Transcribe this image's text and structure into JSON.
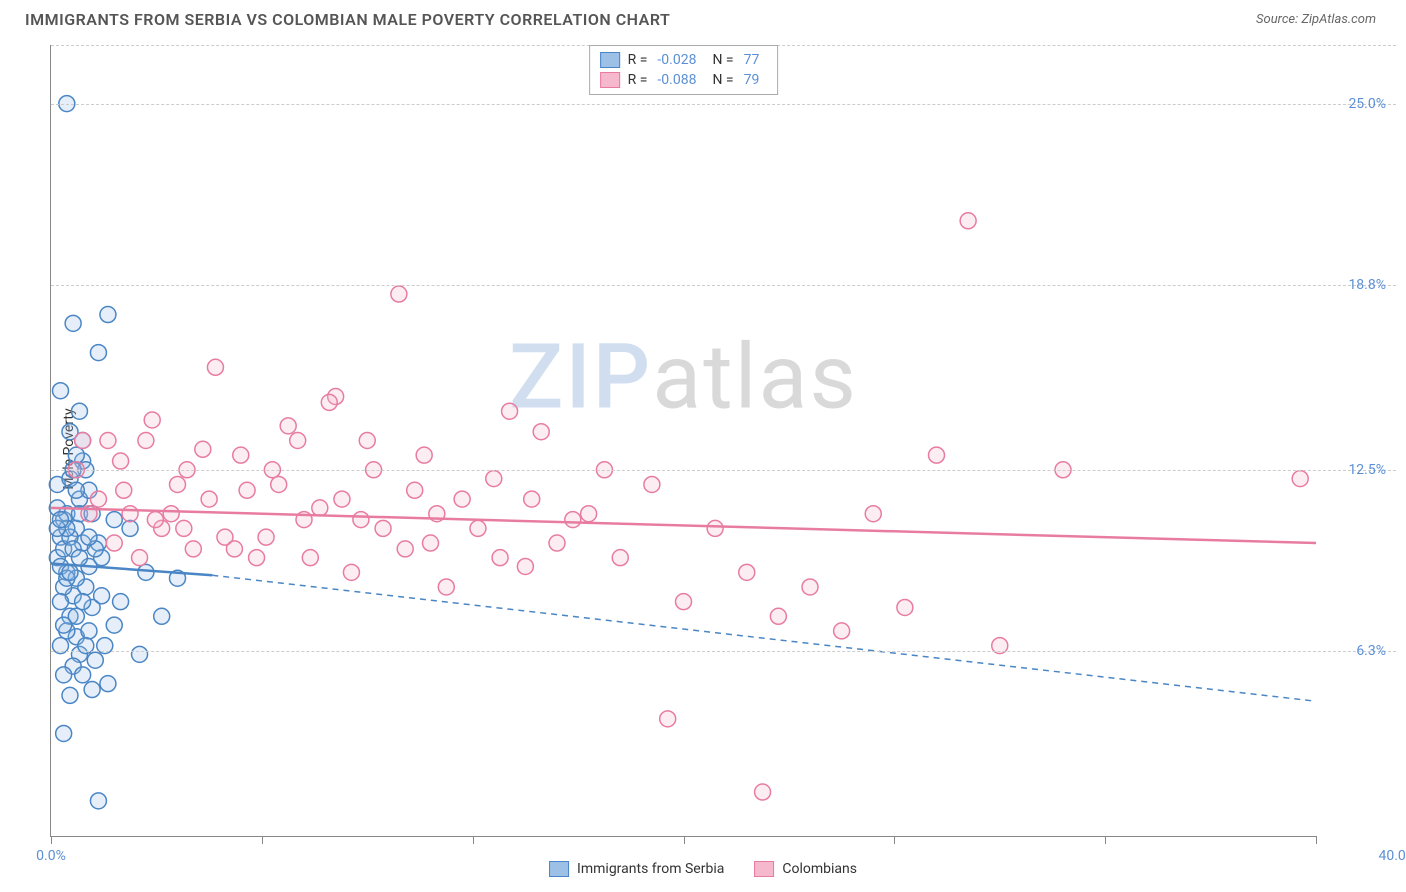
{
  "header": {
    "title": "IMMIGRANTS FROM SERBIA VS COLOMBIAN MALE POVERTY CORRELATION CHART",
    "source_label": "Source:",
    "source_value": "ZipAtlas.com"
  },
  "chart": {
    "type": "scatter",
    "ylabel": "Male Poverty",
    "watermark": {
      "part1": "ZIP",
      "part2": "atlas"
    },
    "xlim": [
      0,
      40
    ],
    "ylim": [
      0,
      27
    ],
    "x_ticks": [
      0,
      6.67,
      13.33,
      20,
      26.67,
      33.33,
      40
    ],
    "x_tick_labels": {
      "0": "0.0%",
      "40": "40.0%"
    },
    "y_gridlines": [
      6.3,
      12.5,
      18.8,
      25.0
    ],
    "y_tick_labels": [
      "6.3%",
      "12.5%",
      "18.8%",
      "25.0%"
    ],
    "grid_color": "#cccccc",
    "axis_color": "#888888",
    "background": "#ffffff",
    "tick_label_color": "#5b8fd6",
    "marker_radius": 8,
    "marker_stroke_width": 1.5,
    "marker_fill_opacity": 0.25,
    "line_width": 2.5,
    "series": [
      {
        "name": "Immigrants from Serbia",
        "color_stroke": "#4a86c5",
        "color_fill": "#9cc0e6",
        "r_label": "R =",
        "r_value": "-0.028",
        "n_label": "N =",
        "n_value": "77",
        "regression": {
          "solid": {
            "x1": 0,
            "y1": 9.3,
            "x2": 5.1,
            "y2": 8.9
          },
          "dashed": {
            "x1": 5.1,
            "y1": 8.9,
            "x2": 40,
            "y2": 4.6
          }
        },
        "points": [
          [
            0.2,
            9.5
          ],
          [
            0.3,
            10.2
          ],
          [
            0.4,
            10.8
          ],
          [
            0.5,
            9.0
          ],
          [
            0.6,
            7.5
          ],
          [
            0.7,
            8.2
          ],
          [
            0.8,
            6.8
          ],
          [
            0.9,
            11.5
          ],
          [
            1.0,
            12.8
          ],
          [
            0.3,
            15.2
          ],
          [
            0.6,
            13.8
          ],
          [
            0.4,
            9.8
          ],
          [
            0.8,
            10.5
          ],
          [
            1.1,
            8.5
          ],
          [
            1.2,
            9.2
          ],
          [
            0.5,
            7.0
          ],
          [
            0.9,
            6.2
          ],
          [
            1.3,
            7.8
          ],
          [
            1.5,
            10.0
          ],
          [
            0.2,
            12.0
          ],
          [
            0.7,
            5.8
          ],
          [
            1.0,
            5.5
          ],
          [
            1.4,
            6.0
          ],
          [
            0.6,
            4.8
          ],
          [
            1.8,
            5.2
          ],
          [
            2.0,
            7.2
          ],
          [
            0.4,
            3.5
          ],
          [
            0.3,
            6.5
          ],
          [
            1.6,
            9.5
          ],
          [
            2.2,
            8.0
          ],
          [
            0.5,
            11.0
          ],
          [
            0.8,
            13.0
          ],
          [
            1.2,
            11.8
          ],
          [
            0.9,
            14.5
          ],
          [
            1.5,
            16.5
          ],
          [
            1.8,
            17.8
          ],
          [
            0.7,
            17.5
          ],
          [
            1.0,
            10.0
          ],
          [
            2.5,
            10.5
          ],
          [
            3.0,
            9.0
          ],
          [
            3.5,
            7.5
          ],
          [
            4.0,
            8.8
          ],
          [
            1.3,
            5.0
          ],
          [
            1.7,
            6.5
          ],
          [
            2.8,
            6.2
          ],
          [
            0.4,
            8.5
          ],
          [
            0.6,
            10.2
          ],
          [
            0.2,
            11.2
          ],
          [
            0.5,
            25.0
          ],
          [
            2.0,
            10.8
          ],
          [
            1.1,
            12.5
          ],
          [
            0.3,
            9.2
          ],
          [
            0.8,
            8.8
          ],
          [
            1.4,
            9.8
          ],
          [
            0.9,
            11.0
          ],
          [
            1.6,
            8.2
          ],
          [
            0.4,
            7.2
          ],
          [
            0.7,
            9.8
          ],
          [
            1.0,
            8.0
          ],
          [
            1.2,
            7.0
          ],
          [
            0.5,
            10.5
          ],
          [
            0.6,
            12.2
          ],
          [
            0.3,
            8.0
          ],
          [
            0.8,
            7.5
          ],
          [
            1.1,
            6.5
          ],
          [
            0.4,
            5.5
          ],
          [
            0.2,
            10.5
          ],
          [
            0.9,
            9.5
          ],
          [
            1.3,
            11.0
          ],
          [
            1.5,
            1.2
          ],
          [
            0.7,
            12.5
          ],
          [
            1.0,
            13.5
          ],
          [
            0.5,
            8.8
          ],
          [
            0.8,
            11.8
          ],
          [
            1.2,
            10.2
          ],
          [
            0.6,
            9.0
          ],
          [
            0.3,
            10.8
          ]
        ]
      },
      {
        "name": "Colombians",
        "color_stroke": "#e87ca0",
        "color_fill": "#f5b8cc",
        "r_label": "R =",
        "r_value": "-0.088",
        "n_label": "N =",
        "n_value": "79",
        "regression": {
          "solid": {
            "x1": 0,
            "y1": 11.2,
            "x2": 40,
            "y2": 10.0
          }
        },
        "points": [
          [
            2.5,
            11.0
          ],
          [
            3.0,
            13.5
          ],
          [
            3.5,
            10.5
          ],
          [
            4.0,
            12.0
          ],
          [
            4.5,
            9.8
          ],
          [
            5.0,
            11.5
          ],
          [
            5.5,
            10.2
          ],
          [
            6.0,
            13.0
          ],
          [
            6.5,
            9.5
          ],
          [
            7.0,
            12.5
          ],
          [
            7.5,
            14.0
          ],
          [
            8.0,
            10.8
          ],
          [
            8.5,
            11.2
          ],
          [
            9.0,
            15.0
          ],
          [
            9.5,
            9.0
          ],
          [
            10.0,
            13.5
          ],
          [
            10.5,
            10.5
          ],
          [
            11.0,
            18.5
          ],
          [
            11.5,
            11.8
          ],
          [
            12.0,
            10.0
          ],
          [
            12.5,
            8.5
          ],
          [
            13.0,
            11.5
          ],
          [
            14.0,
            12.2
          ],
          [
            14.5,
            14.5
          ],
          [
            15.0,
            9.2
          ],
          [
            15.5,
            13.8
          ],
          [
            16.0,
            10.0
          ],
          [
            17.0,
            11.0
          ],
          [
            18.0,
            9.5
          ],
          [
            19.0,
            12.0
          ],
          [
            20.0,
            8.0
          ],
          [
            21.0,
            10.5
          ],
          [
            22.0,
            9.0
          ],
          [
            23.0,
            7.5
          ],
          [
            24.0,
            8.5
          ],
          [
            25.0,
            7.0
          ],
          [
            26.0,
            11.0
          ],
          [
            27.0,
            7.8
          ],
          [
            28.0,
            13.0
          ],
          [
            29.0,
            21.0
          ],
          [
            30.0,
            6.5
          ],
          [
            32.0,
            12.5
          ],
          [
            19.5,
            4.0
          ],
          [
            22.5,
            1.5
          ],
          [
            1.5,
            11.5
          ],
          [
            2.0,
            10.0
          ],
          [
            2.2,
            12.8
          ],
          [
            2.8,
            9.5
          ],
          [
            3.2,
            14.2
          ],
          [
            3.8,
            11.0
          ],
          [
            4.2,
            10.5
          ],
          [
            4.8,
            13.2
          ],
          [
            5.2,
            16.0
          ],
          [
            5.8,
            9.8
          ],
          [
            6.2,
            11.8
          ],
          [
            6.8,
            10.2
          ],
          [
            7.2,
            12.0
          ],
          [
            7.8,
            13.5
          ],
          [
            8.2,
            9.5
          ],
          [
            8.8,
            14.8
          ],
          [
            9.2,
            11.5
          ],
          [
            9.8,
            10.8
          ],
          [
            10.2,
            12.5
          ],
          [
            11.2,
            9.8
          ],
          [
            11.8,
            13.0
          ],
          [
            12.2,
            11.0
          ],
          [
            13.5,
            10.5
          ],
          [
            14.2,
            9.5
          ],
          [
            15.2,
            11.5
          ],
          [
            16.5,
            10.8
          ],
          [
            17.5,
            12.5
          ],
          [
            1.0,
            13.5
          ],
          [
            1.2,
            11.0
          ],
          [
            0.8,
            12.5
          ],
          [
            1.8,
            13.5
          ],
          [
            2.3,
            11.8
          ],
          [
            3.3,
            10.8
          ],
          [
            4.3,
            12.5
          ],
          [
            39.5,
            12.2
          ]
        ]
      }
    ]
  }
}
